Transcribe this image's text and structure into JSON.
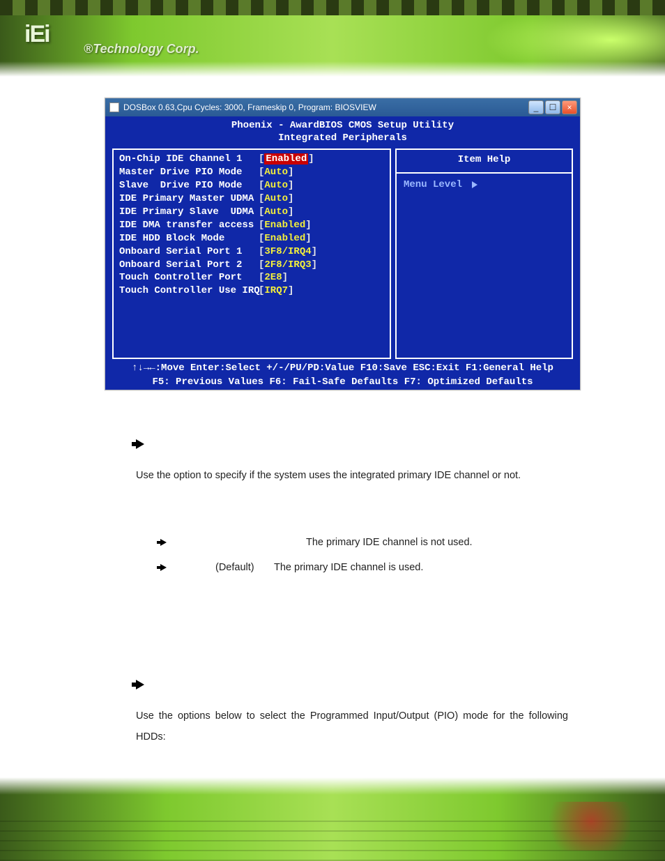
{
  "header": {
    "logo_text": "iEi",
    "tagline": "®Technology Corp."
  },
  "window": {
    "title": "DOSBox 0.63,Cpu Cycles:   3000, Frameskip  0, Program: BIOSVIEW",
    "buttons": {
      "min": "_",
      "max": "☐",
      "close": "×"
    }
  },
  "bios": {
    "title1": "Phoenix - AwardBIOS CMOS Setup Utility",
    "title2": "Integrated Peripherals",
    "options": [
      {
        "label": "On-Chip IDE Channel 1",
        "value": "Enabled",
        "style": "red"
      },
      {
        "label": "Master Drive PIO Mode",
        "value": "Auto",
        "style": "yellow"
      },
      {
        "label": "Slave  Drive PIO Mode",
        "value": "Auto",
        "style": "yellow"
      },
      {
        "label": "IDE Primary Master UDMA",
        "value": "Auto",
        "style": "yellow"
      },
      {
        "label": "IDE Primary Slave  UDMA",
        "value": "Auto",
        "style": "yellow"
      },
      {
        "label": "IDE DMA transfer access",
        "value": "Enabled",
        "style": "yellow"
      },
      {
        "label": "IDE HDD Block Mode",
        "value": "Enabled",
        "style": "yellow"
      },
      {
        "label": "Onboard Serial Port 1",
        "value": "3F8/IRQ4",
        "style": "yellow"
      },
      {
        "label": "Onboard Serial Port 2",
        "value": "2F8/IRQ3",
        "style": "yellow"
      },
      {
        "label": "Touch Controller Port",
        "value": "2E8",
        "style": "yellow"
      },
      {
        "label": "Touch Controller Use IRQ",
        "value": "IRQ7",
        "style": "yellow"
      }
    ],
    "help_title": "Item Help",
    "menu_level": "Menu Level",
    "footer1": "↑↓→←:Move  Enter:Select  +/-/PU/PD:Value  F10:Save   ESC:Exit  F1:General Help",
    "footer2": "F5: Previous Values    F6: Fail-Safe Defaults    F7: Optimized Defaults",
    "colors": {
      "background": "#1028a8",
      "text": "#ffffff",
      "value_yellow": "#f5f03a",
      "value_red_bg": "#c80000",
      "menu_dim": "#9bb8ff"
    },
    "font": {
      "family": "Courier New",
      "size_pt": 11,
      "weight": "bold"
    }
  },
  "doc": {
    "sec1": {
      "intro_a": "Use the ",
      "intro_b": " option to specify if the system uses the integrated primary IDE channel or not.",
      "opts": [
        {
          "default": "",
          "desc": "The primary IDE channel is not used."
        },
        {
          "default": "(Default)",
          "desc": "The primary IDE channel is used."
        }
      ]
    },
    "sec2": {
      "intro_a": "Use the ",
      "intro_b": " options below to select the Programmed Input/Output (PIO) mode for the following HDDs:"
    },
    "text_color": "#222222",
    "font_size_pt": 11
  }
}
